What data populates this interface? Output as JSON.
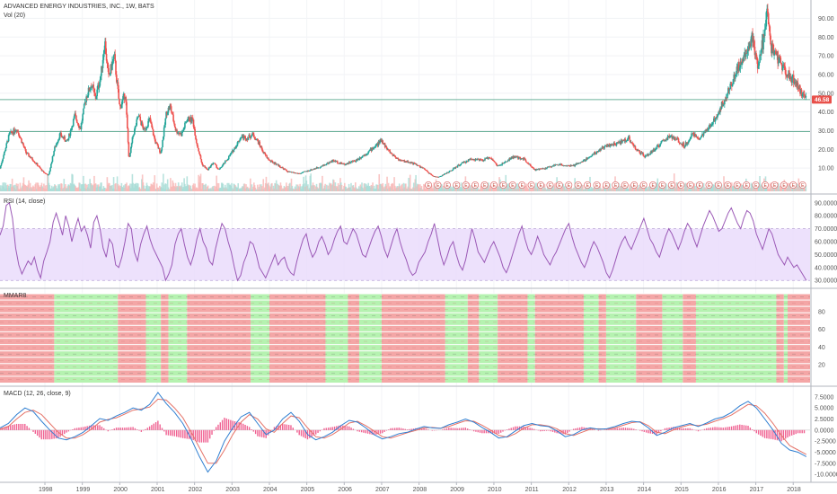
{
  "header": {
    "symbol_title": "ADVANCED ENERGY INDUSTRIES, INC., 1W, BATS",
    "volume_title": "Vol (20)"
  },
  "panes": {
    "rsi_title": "RSI (14, close)",
    "mmar_title": "MMAR8",
    "macd_title": "MACD (12, 26, close, 9)"
  },
  "last_price_label": "46.58",
  "earnings_marker_letter": "E",
  "colors": {
    "up": "#26a69a",
    "down": "#ef5350",
    "rsi_line": "#9b59b6",
    "rsi_band": "#e8d9fb",
    "hline": "#6bb19a",
    "mmar_green": "#b5f2b0",
    "mmar_red": "#f4a6a6",
    "macd_line": "#2f7fd1",
    "signal_line": "#e57368",
    "hist": "#f06292",
    "price_tag": "#e8504a"
  },
  "chart_data": [
    {
      "type": "candlestick",
      "title": "ADVANCED ENERGY INDUSTRIES, INC., 1W, BATS",
      "x_tick_labels": [
        "1998",
        "1999",
        "2000",
        "2001",
        "2002",
        "2003",
        "2004",
        "2005",
        "2006",
        "2007",
        "2008",
        "2009",
        "2010",
        "2011",
        "2012",
        "2013",
        "2014",
        "2015",
        "2016",
        "2017",
        "2018"
      ],
      "y_tick_labels": [
        "10.00",
        "20.00",
        "30.00",
        "40.00",
        "50.00",
        "60.00",
        "70.00",
        "80.00",
        "90.00"
      ],
      "ylim": [
        0,
        95
      ],
      "xlim": [
        1997.3,
        2018.95
      ],
      "last_price": 46.58,
      "horizontal_lines": [
        46.58,
        29.5
      ],
      "price_path": [
        [
          1997.3,
          10
        ],
        [
          1997.55,
          28
        ],
        [
          1997.75,
          31
        ],
        [
          1998.0,
          18
        ],
        [
          1998.2,
          14
        ],
        [
          1998.45,
          8
        ],
        [
          1998.6,
          6
        ],
        [
          1998.75,
          20
        ],
        [
          1998.9,
          28
        ],
        [
          1999.1,
          24
        ],
        [
          1999.3,
          38
        ],
        [
          1999.45,
          31
        ],
        [
          1999.6,
          48
        ],
        [
          1999.75,
          55
        ],
        [
          1999.85,
          47
        ],
        [
          2000.0,
          60
        ],
        [
          2000.1,
          78
        ],
        [
          2000.2,
          58
        ],
        [
          2000.35,
          70
        ],
        [
          2000.5,
          42
        ],
        [
          2000.65,
          50
        ],
        [
          2000.75,
          14
        ],
        [
          2000.85,
          27
        ],
        [
          2001.0,
          38
        ],
        [
          2001.15,
          30
        ],
        [
          2001.3,
          36
        ],
        [
          2001.45,
          24
        ],
        [
          2001.6,
          18
        ],
        [
          2001.75,
          40
        ],
        [
          2001.85,
          43
        ],
        [
          2002.0,
          30
        ],
        [
          2002.15,
          28
        ],
        [
          2002.3,
          36
        ],
        [
          2002.45,
          36
        ],
        [
          2002.55,
          24
        ],
        [
          2002.7,
          12
        ],
        [
          2002.85,
          9
        ],
        [
          2003.0,
          13
        ],
        [
          2003.15,
          9
        ],
        [
          2003.35,
          14
        ],
        [
          2003.55,
          20
        ],
        [
          2003.75,
          27
        ],
        [
          2003.9,
          26
        ],
        [
          2004.05,
          28
        ],
        [
          2004.2,
          24
        ],
        [
          2004.35,
          18
        ],
        [
          2004.5,
          14
        ],
        [
          2004.7,
          12
        ],
        [
          2004.85,
          10
        ],
        [
          2005.0,
          8
        ],
        [
          2005.3,
          7
        ],
        [
          2005.6,
          9
        ],
        [
          2005.9,
          11
        ],
        [
          2006.2,
          14
        ],
        [
          2006.5,
          12
        ],
        [
          2006.8,
          14
        ],
        [
          2007.1,
          18
        ],
        [
          2007.35,
          22
        ],
        [
          2007.5,
          25
        ],
        [
          2007.65,
          20
        ],
        [
          2007.8,
          17
        ],
        [
          2008.0,
          14
        ],
        [
          2008.3,
          13
        ],
        [
          2008.6,
          10
        ],
        [
          2008.85,
          6
        ],
        [
          2009.0,
          5
        ],
        [
          2009.3,
          8
        ],
        [
          2009.6,
          12
        ],
        [
          2009.9,
          15
        ],
        [
          2010.2,
          14
        ],
        [
          2010.4,
          16
        ],
        [
          2010.6,
          11
        ],
        [
          2010.8,
          13
        ],
        [
          2011.0,
          16
        ],
        [
          2011.3,
          15
        ],
        [
          2011.6,
          9
        ],
        [
          2011.9,
          10
        ],
        [
          2012.2,
          12
        ],
        [
          2012.6,
          11
        ],
        [
          2012.9,
          14
        ],
        [
          2013.2,
          18
        ],
        [
          2013.5,
          22
        ],
        [
          2013.8,
          23
        ],
        [
          2014.1,
          26
        ],
        [
          2014.3,
          20
        ],
        [
          2014.55,
          16
        ],
        [
          2014.8,
          20
        ],
        [
          2015.0,
          24
        ],
        [
          2015.2,
          27
        ],
        [
          2015.4,
          25
        ],
        [
          2015.6,
          22
        ],
        [
          2015.8,
          28
        ],
        [
          2016.0,
          26
        ],
        [
          2016.2,
          30
        ],
        [
          2016.45,
          38
        ],
        [
          2016.6,
          44
        ],
        [
          2016.85,
          55
        ],
        [
          2017.0,
          63
        ],
        [
          2017.2,
          70
        ],
        [
          2017.4,
          80
        ],
        [
          2017.55,
          65
        ],
        [
          2017.7,
          78
        ],
        [
          2017.8,
          93
        ],
        [
          2017.9,
          75
        ],
        [
          2018.05,
          70
        ],
        [
          2018.25,
          63
        ],
        [
          2018.45,
          58
        ],
        [
          2018.6,
          56
        ],
        [
          2018.75,
          48
        ],
        [
          2018.85,
          46.58
        ]
      ]
    },
    {
      "type": "line",
      "title": "RSI (14, close)",
      "y_tick_labels": [
        "30.0000",
        "40.0000",
        "50.0000",
        "60.0000",
        "70.0000",
        "80.0000",
        "90.0000"
      ],
      "ylim": [
        26,
        94
      ],
      "band": [
        30,
        70
      ],
      "xlim": [
        1997.3,
        2018.95
      ],
      "values": [
        65,
        72,
        88,
        90,
        78,
        55,
        42,
        35,
        40,
        45,
        42,
        48,
        38,
        32,
        45,
        52,
        60,
        75,
        82,
        74,
        65,
        80,
        72,
        60,
        70,
        78,
        68,
        72,
        65,
        55,
        75,
        80,
        70,
        55,
        48,
        62,
        58,
        42,
        40,
        48,
        60,
        74,
        70,
        52,
        45,
        58,
        66,
        72,
        62,
        55,
        50,
        45,
        40,
        30,
        35,
        42,
        58,
        66,
        70,
        58,
        48,
        42,
        50,
        62,
        70,
        60,
        55,
        45,
        42,
        55,
        65,
        74,
        70,
        60,
        52,
        40,
        30,
        34,
        44,
        50,
        60,
        58,
        50,
        40,
        36,
        32,
        38,
        44,
        50,
        42,
        46,
        48,
        40,
        36,
        34,
        45,
        54,
        62,
        66,
        55,
        48,
        52,
        60,
        64,
        58,
        50,
        54,
        62,
        68,
        72,
        60,
        58,
        64,
        70,
        66,
        58,
        50,
        48,
        55,
        62,
        68,
        72,
        64,
        54,
        48,
        56,
        64,
        70,
        60,
        52,
        46,
        38,
        34,
        36,
        44,
        48,
        52,
        60,
        66,
        74,
        62,
        50,
        42,
        48,
        56,
        60,
        50,
        42,
        38,
        46,
        58,
        70,
        62,
        52,
        48,
        44,
        50,
        56,
        60,
        54,
        48,
        40,
        36,
        42,
        50,
        58,
        66,
        72,
        62,
        54,
        50,
        56,
        64,
        58,
        50,
        46,
        42,
        48,
        52,
        58,
        64,
        70,
        74,
        64,
        56,
        50,
        44,
        40,
        46,
        54,
        60,
        56,
        50,
        44,
        36,
        32,
        38,
        46,
        54,
        60,
        64,
        58,
        54,
        60,
        66,
        72,
        78,
        70,
        62,
        58,
        52,
        48,
        56,
        64,
        70,
        66,
        60,
        54,
        60,
        68,
        74,
        70,
        62,
        56,
        64,
        72,
        78,
        84,
        80,
        74,
        68,
        70,
        76,
        82,
        86,
        80,
        74,
        70,
        78,
        84,
        82,
        76,
        66,
        60,
        54,
        62,
        70,
        66,
        58,
        50,
        46,
        42,
        48,
        44,
        40,
        42,
        38,
        34,
        30
      ]
    },
    {
      "type": "heatmap",
      "title": "MMAR8",
      "y_tick_labels": [
        "20",
        "40",
        "60",
        "80"
      ],
      "ylim": [
        0,
        100
      ],
      "xlim": [
        1997.3,
        2018.95
      ],
      "state_segments": [
        [
          1997.3,
          "red"
        ],
        [
          1998.75,
          "green"
        ],
        [
          2000.45,
          "red"
        ],
        [
          2001.2,
          "green"
        ],
        [
          2001.6,
          "red"
        ],
        [
          2001.8,
          "green"
        ],
        [
          2002.3,
          "red"
        ],
        [
          2004.0,
          "green"
        ],
        [
          2004.5,
          "red"
        ],
        [
          2006.0,
          "green"
        ],
        [
          2006.6,
          "red"
        ],
        [
          2006.9,
          "green"
        ],
        [
          2007.5,
          "red"
        ],
        [
          2009.2,
          "green"
        ],
        [
          2009.8,
          "red"
        ],
        [
          2010.1,
          "green"
        ],
        [
          2010.6,
          "red"
        ],
        [
          2011.4,
          "green"
        ],
        [
          2011.6,
          "red"
        ],
        [
          2012.9,
          "green"
        ],
        [
          2013.3,
          "red"
        ],
        [
          2013.5,
          "green"
        ],
        [
          2014.3,
          "red"
        ],
        [
          2015.0,
          "green"
        ],
        [
          2015.55,
          "red"
        ],
        [
          2015.9,
          "green"
        ],
        [
          2018.05,
          "red"
        ],
        [
          2018.25,
          "green"
        ],
        [
          2018.35,
          "red"
        ]
      ]
    },
    {
      "type": "line",
      "title": "MACD (12, 26, close, 9)",
      "y_tick_labels": [
        "-10.0000",
        "-7.5000",
        "-5.0000",
        "-2.5000",
        "0.0000",
        "2.5000",
        "5.0000",
        "7.5000"
      ],
      "ylim": [
        -11,
        8.5
      ],
      "xlim": [
        1997.3,
        2018.95
      ],
      "series": [
        {
          "values": [
            0.5,
            1.5,
            3.5,
            5.0,
            4.2,
            2.0,
            0.0,
            -1.8,
            -2.2,
            -1.5,
            -0.5,
            1.0,
            2.6,
            2.2,
            3.2,
            4.0,
            5.0,
            4.5,
            5.8,
            8.5,
            6.0,
            4.0,
            1.5,
            -2.0,
            -6.0,
            -9.5,
            -7.0,
            -2.5,
            0.5,
            3.0,
            4.0,
            1.5,
            -1.0,
            0.0,
            2.5,
            4.0,
            2.0,
            -1.0,
            -2.2,
            -1.5,
            -0.5,
            1.0,
            2.2,
            1.8,
            0.5,
            -1.0,
            -2.0,
            -1.5,
            -0.8,
            -0.5,
            0.2,
            0.8,
            0.5,
            0.4,
            1.2,
            1.8,
            2.5,
            1.8,
            0.6,
            -0.5,
            -1.8,
            -1.5,
            -0.2,
            1.0,
            1.5,
            1.0,
            0.8,
            -0.2,
            -1.5,
            -1.0,
            0.0,
            0.5,
            0.2,
            0.3,
            0.8,
            1.5,
            2.0,
            1.8,
            0.5,
            -1.2,
            -0.5,
            0.5,
            1.0,
            1.5,
            0.8,
            1.6,
            2.5,
            3.0,
            4.0,
            5.5,
            6.5,
            5.0,
            2.5,
            0.0,
            -3.0,
            -4.5,
            -5.0,
            -6.0
          ]
        },
        {
          "values": [
            0.2,
            0.8,
            2.5,
            4.0,
            4.5,
            3.5,
            1.5,
            -0.5,
            -1.8,
            -1.8,
            -1.0,
            0.2,
            1.8,
            2.4,
            2.8,
            3.6,
            4.5,
            4.8,
            5.2,
            7.0,
            6.8,
            5.0,
            2.8,
            -0.5,
            -4.0,
            -7.5,
            -7.5,
            -4.5,
            -1.0,
            1.8,
            3.5,
            2.5,
            0.3,
            -0.5,
            1.5,
            3.2,
            2.8,
            0.5,
            -1.5,
            -1.8,
            -1.0,
            0.2,
            1.6,
            2.0,
            1.0,
            -0.2,
            -1.5,
            -1.8,
            -1.2,
            -0.6,
            -0.1,
            0.5,
            0.6,
            0.4,
            0.8,
            1.5,
            2.1,
            2.0,
            1.1,
            0.0,
            -1.2,
            -1.6,
            -0.8,
            0.4,
            1.2,
            1.2,
            0.9,
            0.3,
            -0.8,
            -1.2,
            -0.5,
            0.2,
            0.3,
            0.2,
            0.5,
            1.1,
            1.7,
            1.9,
            1.0,
            -0.5,
            -0.8,
            0.0,
            0.7,
            1.2,
            1.0,
            1.3,
            2.0,
            2.6,
            3.4,
            4.6,
            5.8,
            5.5,
            3.8,
            1.5,
            -1.2,
            -3.5,
            -4.5,
            -5.5
          ]
        }
      ]
    }
  ]
}
